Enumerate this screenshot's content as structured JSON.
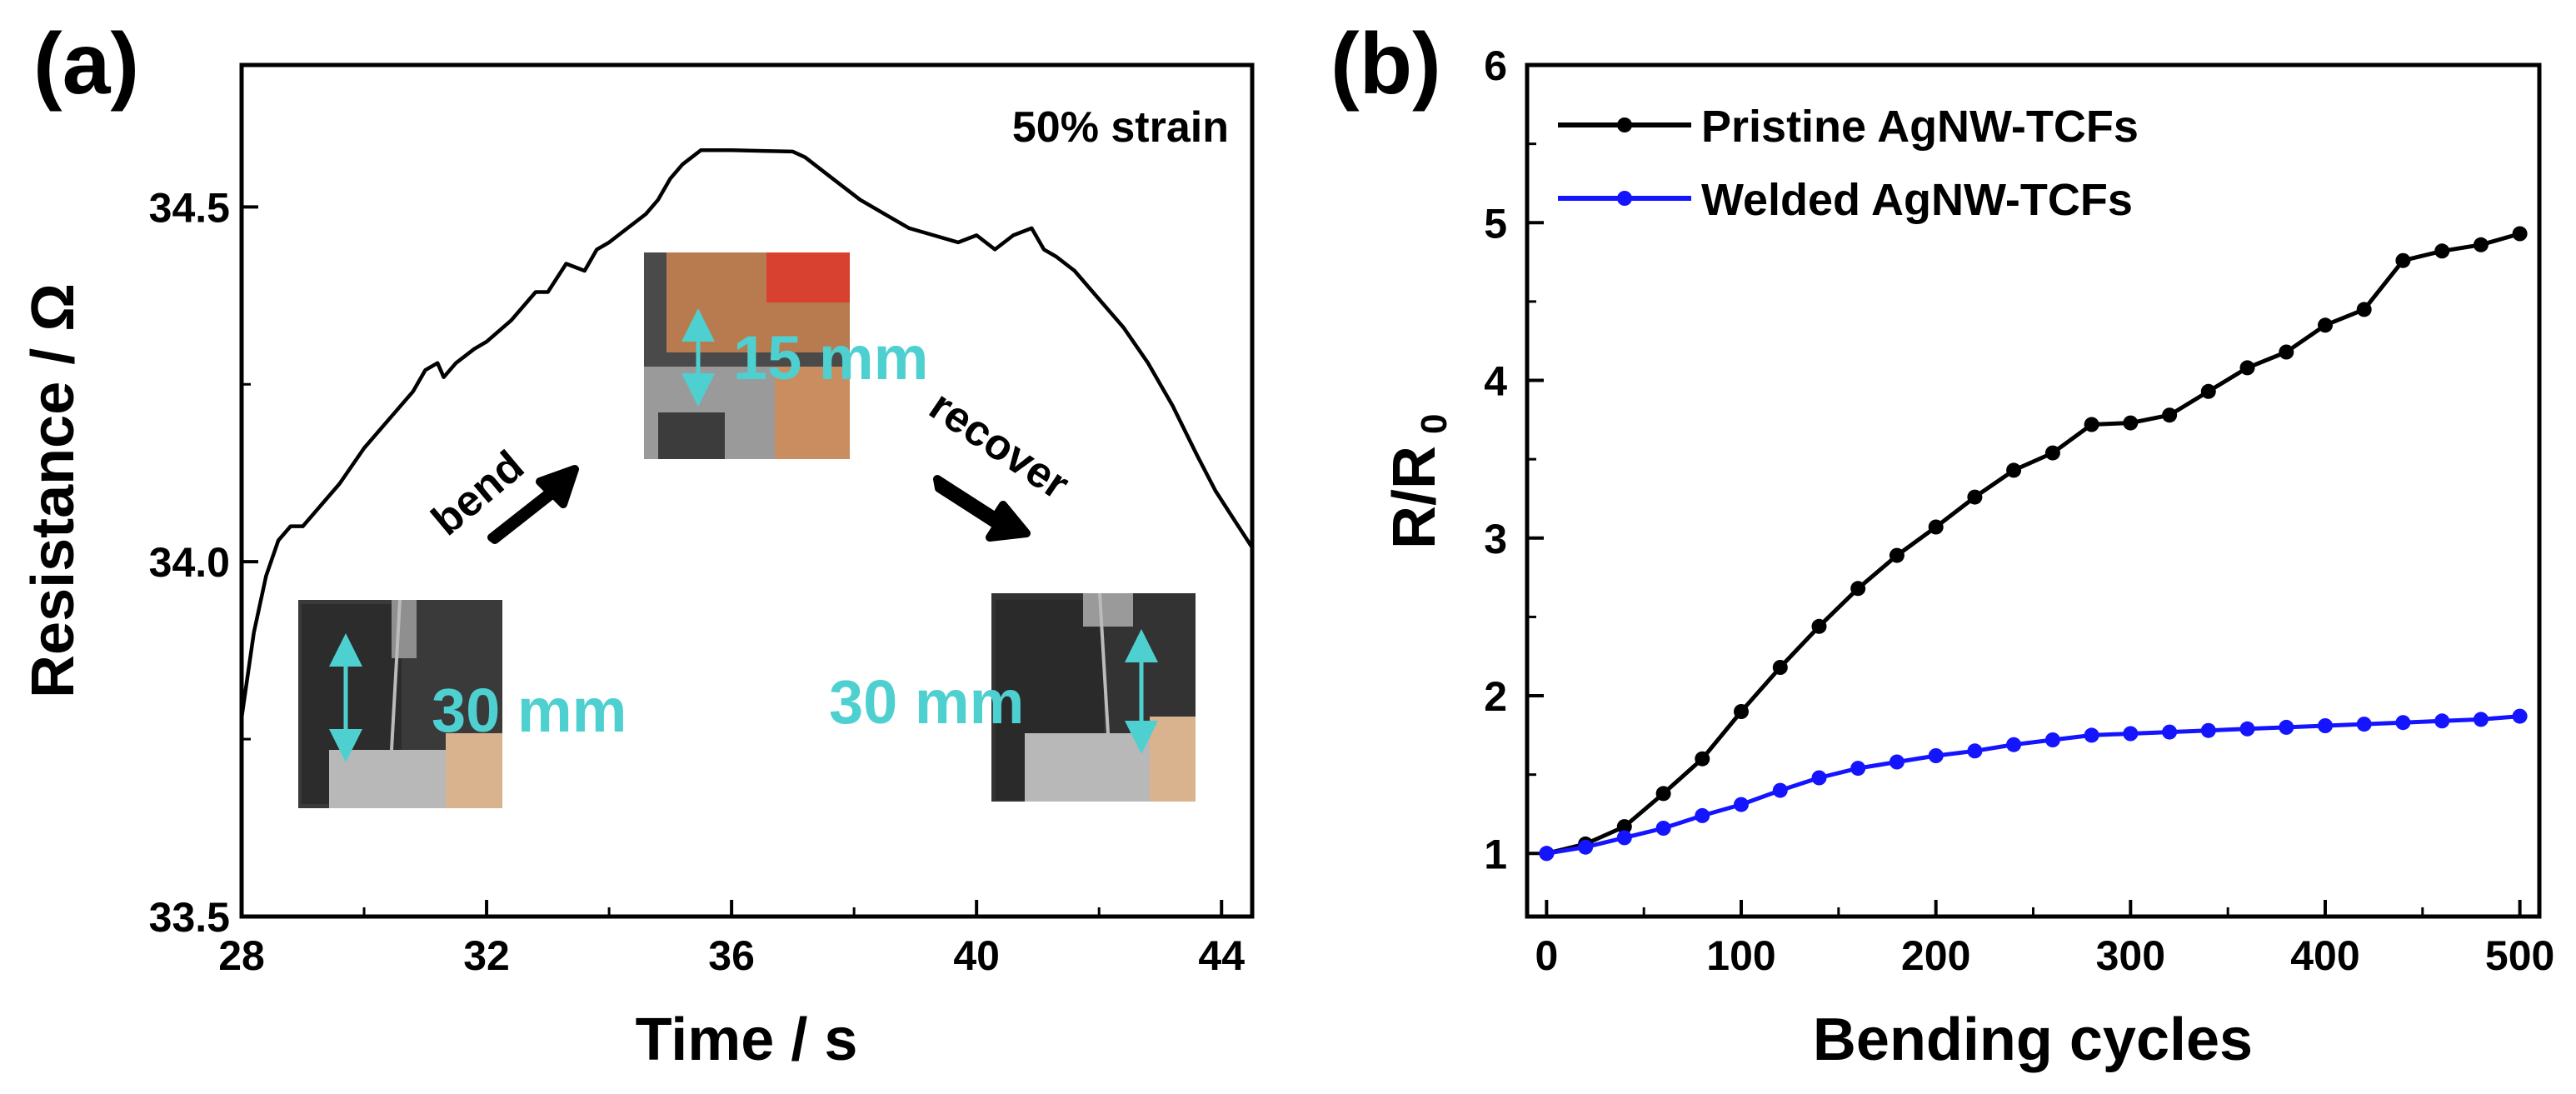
{
  "chart_data": [
    {
      "panel": "(a)",
      "type": "line",
      "xlabel": "Time / s",
      "ylabel": "Resistance / Ω",
      "xlim": [
        28,
        44.5
      ],
      "ylim": [
        33.5,
        34.7
      ],
      "xticks": [
        28,
        32,
        36,
        40,
        44
      ],
      "yticks": [
        "33.5",
        "34.0",
        "34.5"
      ],
      "grid": false,
      "series": [
        {
          "color": "#000000",
          "x": [
            28.0,
            28.2,
            28.4,
            28.6,
            28.8,
            29.0,
            29.3,
            29.6,
            30.0,
            30.4,
            30.8,
            31.0,
            31.2,
            31.3,
            31.5,
            31.8,
            32.0,
            32.4,
            32.8,
            33.0,
            33.3,
            33.6,
            33.8,
            34.0,
            34.3,
            34.6,
            34.8,
            35.0,
            35.2,
            35.5,
            36.0,
            36.5,
            37.0,
            37.2,
            37.5,
            37.8,
            38.1,
            38.5,
            38.9,
            39.3,
            39.7,
            40.0,
            40.3,
            40.6,
            40.9,
            41.1,
            41.3,
            41.6,
            42.0,
            42.4,
            42.8,
            43.2,
            43.6,
            43.9,
            44.2,
            44.5
          ],
          "y": [
            33.78,
            33.9,
            33.98,
            34.03,
            34.05,
            34.05,
            34.08,
            34.11,
            34.16,
            34.2,
            34.24,
            34.27,
            34.28,
            34.26,
            34.28,
            34.3,
            34.31,
            34.34,
            34.38,
            34.38,
            34.42,
            34.41,
            34.44,
            34.45,
            34.47,
            34.49,
            34.51,
            34.54,
            34.56,
            34.58,
            34.58,
            34.579,
            34.578,
            34.57,
            34.55,
            34.53,
            34.51,
            34.49,
            34.47,
            34.46,
            34.45,
            34.46,
            34.44,
            34.46,
            34.47,
            34.44,
            34.43,
            34.41,
            34.37,
            34.33,
            34.28,
            34.22,
            34.15,
            34.1,
            34.06,
            34.02
          ]
        }
      ],
      "annotations": {
        "strain": "50% strain",
        "bend": "bend",
        "recover": "recover",
        "left_dim": "30 mm",
        "middle_dim": "15 mm",
        "right_dim": "30 mm"
      }
    },
    {
      "panel": "(b)",
      "type": "line",
      "xlabel": "Bending cycles",
      "ylabel": "R/R",
      "ylabel_sub": "0",
      "xlim": [
        -10,
        510
      ],
      "ylim": [
        0.6,
        6
      ],
      "xticks": [
        0,
        100,
        200,
        300,
        400,
        500
      ],
      "yticks": [
        1,
        2,
        3,
        4,
        5,
        6
      ],
      "grid": false,
      "legend_position": "top-left",
      "x": [
        0,
        20,
        40,
        60,
        80,
        100,
        120,
        140,
        160,
        180,
        200,
        220,
        240,
        260,
        280,
        300,
        320,
        340,
        360,
        380,
        400,
        420,
        440,
        460,
        480,
        500
      ],
      "series": [
        {
          "name": "Pristine AgNW-TCFs",
          "color": "#000000",
          "values": [
            1.0,
            1.06,
            1.17,
            1.38,
            1.6,
            1.9,
            2.18,
            2.44,
            2.68,
            2.89,
            3.07,
            3.26,
            3.43,
            3.54,
            3.72,
            3.73,
            3.78,
            3.93,
            4.08,
            4.18,
            4.35,
            4.45,
            4.76,
            4.82,
            4.86,
            4.93
          ]
        },
        {
          "name": "Welded AgNW-TCFs",
          "color": "#1414ff",
          "values": [
            1.0,
            1.04,
            1.1,
            1.16,
            1.24,
            1.31,
            1.4,
            1.48,
            1.54,
            1.58,
            1.62,
            1.65,
            1.69,
            1.72,
            1.75,
            1.76,
            1.77,
            1.78,
            1.79,
            1.8,
            1.81,
            1.82,
            1.83,
            1.84,
            1.85,
            1.87
          ]
        }
      ]
    }
  ]
}
